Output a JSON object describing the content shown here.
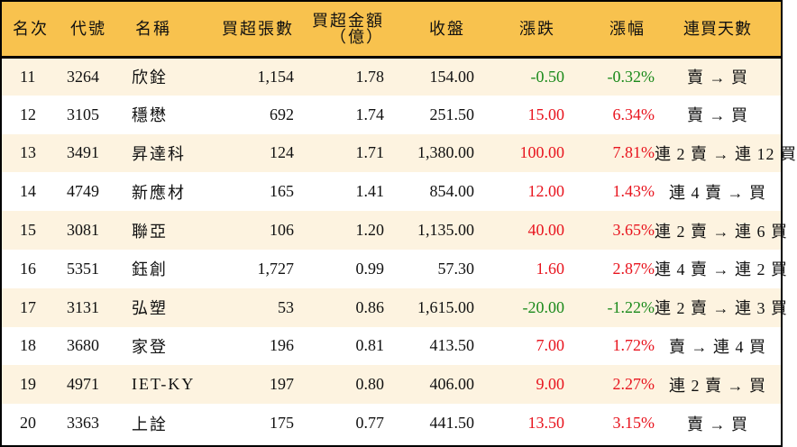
{
  "table": {
    "headers": {
      "rank": "名次",
      "code": "代號",
      "name": "名稱",
      "net_buy_volume": "買超張數",
      "net_buy_amount_line1": "買超金額",
      "net_buy_amount_line2": "（億）",
      "close": "收盤",
      "change": "漲跌",
      "change_pct": "漲幅",
      "consecutive_days": "連買天數"
    },
    "colors": {
      "header_bg": "#F8C24E",
      "odd_row_bg": "#FDF3E0",
      "even_row_bg": "#FFFFFF",
      "up": "#E8141E",
      "down": "#1B8A1B",
      "border": "#000000"
    },
    "rows": [
      {
        "rank": "11",
        "code": "3264",
        "name": "欣銓",
        "volume": "1,154",
        "amount": "1.78",
        "close": "154.00",
        "change": "-0.50",
        "pct": "-0.32%",
        "days": "賣 → 買",
        "dir": "down"
      },
      {
        "rank": "12",
        "code": "3105",
        "name": "穩懋",
        "volume": "692",
        "amount": "1.74",
        "close": "251.50",
        "change": "15.00",
        "pct": "6.34%",
        "days": "賣 → 買",
        "dir": "up"
      },
      {
        "rank": "13",
        "code": "3491",
        "name": "昇達科",
        "volume": "124",
        "amount": "1.71",
        "close": "1,380.00",
        "change": "100.00",
        "pct": "7.81%",
        "days": "連 2 賣 → 連 12 買",
        "dir": "up"
      },
      {
        "rank": "14",
        "code": "4749",
        "name": "新應材",
        "volume": "165",
        "amount": "1.41",
        "close": "854.00",
        "change": "12.00",
        "pct": "1.43%",
        "days": "連 4 賣 → 買",
        "dir": "up"
      },
      {
        "rank": "15",
        "code": "3081",
        "name": "聯亞",
        "volume": "106",
        "amount": "1.20",
        "close": "1,135.00",
        "change": "40.00",
        "pct": "3.65%",
        "days": "連 2 賣 → 連 6 買",
        "dir": "up"
      },
      {
        "rank": "16",
        "code": "5351",
        "name": "鈺創",
        "volume": "1,727",
        "amount": "0.99",
        "close": "57.30",
        "change": "1.60",
        "pct": "2.87%",
        "days": "連 4 賣 → 連 2 買",
        "dir": "up"
      },
      {
        "rank": "17",
        "code": "3131",
        "name": "弘塑",
        "volume": "53",
        "amount": "0.86",
        "close": "1,615.00",
        "change": "-20.00",
        "pct": "-1.22%",
        "days": "連 2 賣 → 連 3 買",
        "dir": "down"
      },
      {
        "rank": "18",
        "code": "3680",
        "name": "家登",
        "volume": "196",
        "amount": "0.81",
        "close": "413.50",
        "change": "7.00",
        "pct": "1.72%",
        "days": "賣 → 連 4 買",
        "dir": "up"
      },
      {
        "rank": "19",
        "code": "4971",
        "name": "IET-KY",
        "volume": "197",
        "amount": "0.80",
        "close": "406.00",
        "change": "9.00",
        "pct": "2.27%",
        "days": "連 2 賣 → 買",
        "dir": "up"
      },
      {
        "rank": "20",
        "code": "3363",
        "name": "上詮",
        "volume": "175",
        "amount": "0.77",
        "close": "441.50",
        "change": "13.50",
        "pct": "3.15%",
        "days": "賣 → 買",
        "dir": "up"
      }
    ]
  }
}
